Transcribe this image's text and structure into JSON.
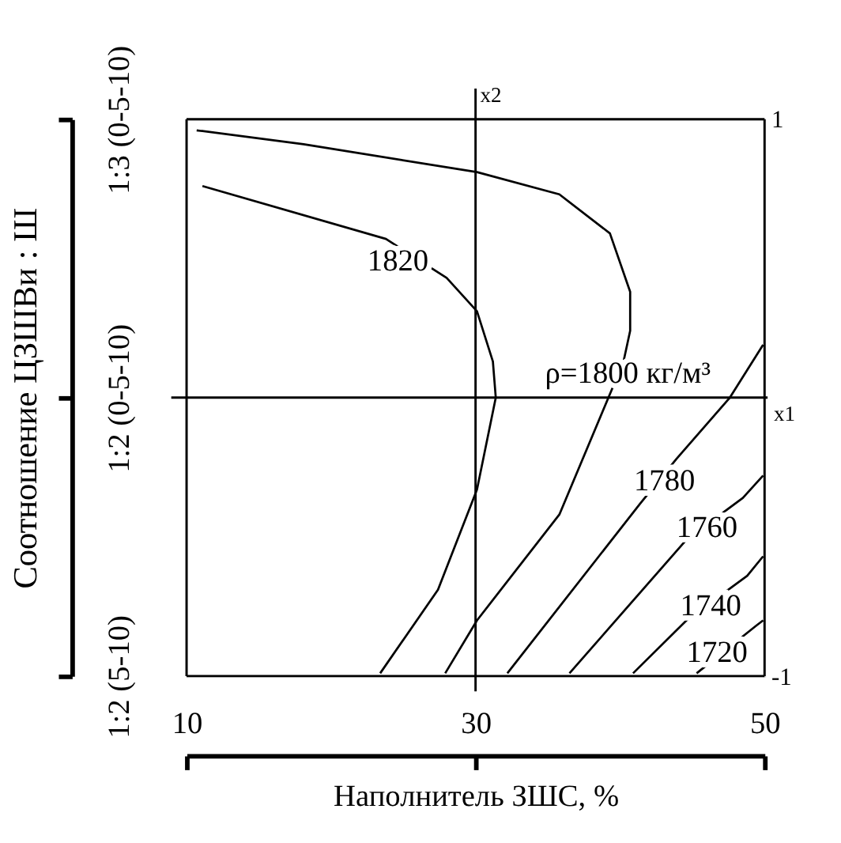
{
  "chart_data": {
    "type": "line",
    "xlabel": "Наполнитель ЗШС, %",
    "ylabel": "Соотношение ЦЗШВи : Ш",
    "xlim": [
      10,
      50
    ],
    "xticks": [
      10,
      30,
      50
    ],
    "ylim": [
      -1,
      1
    ],
    "yticks": [
      -1,
      1
    ],
    "grid": false,
    "legend": false,
    "marker": "none",
    "line_style": "solid",
    "series": [
      {
        "name": "ρ=1800  кг/м³",
        "color": "#000000",
        "x": [
          10.7,
          18.1,
          30.1,
          35.8,
          39.3,
          40.7,
          40.7,
          40.2,
          39.6,
          35.8,
          30.1,
          27.9
        ],
        "values": [
          0.96,
          0.91,
          0.81,
          0.73,
          0.59,
          0.38,
          0.24,
          0.12,
          0.05,
          -0.42,
          -0.8,
          -0.99
        ]
      },
      {
        "name": "1820",
        "color": "#000000",
        "x": [
          11.1,
          23.8,
          28.0,
          30.1,
          31.2,
          31.4,
          30.1,
          27.4,
          23.4
        ],
        "values": [
          0.76,
          0.57,
          0.43,
          0.31,
          0.13,
          0,
          -0.33,
          -0.69,
          -0.99
        ]
      },
      {
        "name": "1780",
        "color": "#000000",
        "x": [
          49.9,
          47.6,
          43.9,
          41.4,
          32.2
        ],
        "values": [
          0.19,
          0,
          -0.22,
          -0.38,
          -0.99
        ]
      },
      {
        "name": "1760",
        "color": "#000000",
        "x": [
          49.9,
          48.5,
          44.6,
          36.5
        ],
        "values": [
          -0.28,
          -0.36,
          -0.51,
          -0.99
        ]
      },
      {
        "name": "1740",
        "color": "#000000",
        "x": [
          49.9,
          48.8,
          44.6,
          40.9
        ],
        "values": [
          -0.57,
          -0.64,
          -0.8,
          -0.99
        ]
      },
      {
        "name": "1720",
        "color": "#000000",
        "x": [
          49.9,
          49.4,
          45.3
        ],
        "values": [
          -0.8,
          -0.82,
          -0.99
        ]
      }
    ],
    "ref_lines": [
      {
        "axis": "x",
        "value": 30,
        "label": "x2"
      },
      {
        "axis": "y",
        "value": 0,
        "label": "x1"
      }
    ],
    "annotations": [
      "1:2 (5-10)",
      "1:2 (0-5-10)",
      "1:3 (0-5-10)"
    ]
  }
}
